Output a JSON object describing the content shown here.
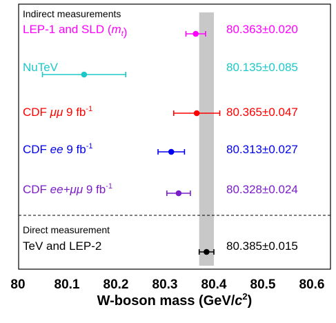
{
  "chart_data": {
    "type": "scatter",
    "orientation": "horizontal-error-bars",
    "xlim": [
      80.0,
      80.64
    ],
    "xticks": [
      {
        "value": 80.0,
        "label": "80"
      },
      {
        "value": 80.1,
        "label": "80.1"
      },
      {
        "value": 80.2,
        "label": "80.2"
      },
      {
        "value": 80.3,
        "label": "80.3"
      },
      {
        "value": 80.4,
        "label": "80.4"
      },
      {
        "value": 80.5,
        "label": "80.5"
      },
      {
        "value": 80.6,
        "label": "80.6"
      }
    ],
    "xlabel_main": "W-boson mass (GeV/",
    "xlabel_var": "c",
    "xlabel_sup": "2",
    "xlabel_end": ")",
    "band": {
      "center": 80.385,
      "half_width": 0.015,
      "color": "#c8c8c8"
    },
    "sections": {
      "indirect": "Indirect measurements",
      "direct": "Direct measurement"
    },
    "series": [
      {
        "group": "indirect",
        "label_parts": [
          {
            "t": "LEP-1 and SLD ("
          },
          {
            "t": "m",
            "i": true
          },
          {
            "t": "t",
            "i": true,
            "sub": true
          },
          {
            "t": ")"
          }
        ],
        "value": 80.363,
        "error": 0.02,
        "value_text": "80.363±0.020",
        "color": "#ff00ff"
      },
      {
        "group": "indirect",
        "label_parts": [
          {
            "t": "NuTeV"
          }
        ],
        "value": 80.135,
        "error": 0.085,
        "value_text": "80.135±0.085",
        "color": "#1ec8c8"
      },
      {
        "group": "indirect",
        "label_parts": [
          {
            "t": "CDF "
          },
          {
            "t": "μμ",
            "i": true
          },
          {
            "t": " 9 fb"
          },
          {
            "t": "-1",
            "sup": true
          }
        ],
        "value": 80.365,
        "error": 0.047,
        "value_text": "80.365±0.047",
        "color": "#ff0000"
      },
      {
        "group": "indirect",
        "label_parts": [
          {
            "t": "CDF "
          },
          {
            "t": "ee",
            "i": true
          },
          {
            "t": " 9 fb"
          },
          {
            "t": "-1",
            "sup": true
          }
        ],
        "value": 80.313,
        "error": 0.027,
        "value_text": "80.313±0.027",
        "color": "#0000ee"
      },
      {
        "group": "indirect",
        "label_parts": [
          {
            "t": "CDF "
          },
          {
            "t": "ee+μμ",
            "i": true
          },
          {
            "t": " 9 fb"
          },
          {
            "t": "-1",
            "sup": true
          }
        ],
        "value": 80.328,
        "error": 0.024,
        "value_text": "80.328±0.024",
        "color": "#7a1cc8"
      },
      {
        "group": "direct",
        "label_parts": [
          {
            "t": "TeV and LEP-2"
          }
        ],
        "value": 80.385,
        "error": 0.015,
        "value_text": "80.385±0.015",
        "color": "#000000"
      }
    ]
  }
}
